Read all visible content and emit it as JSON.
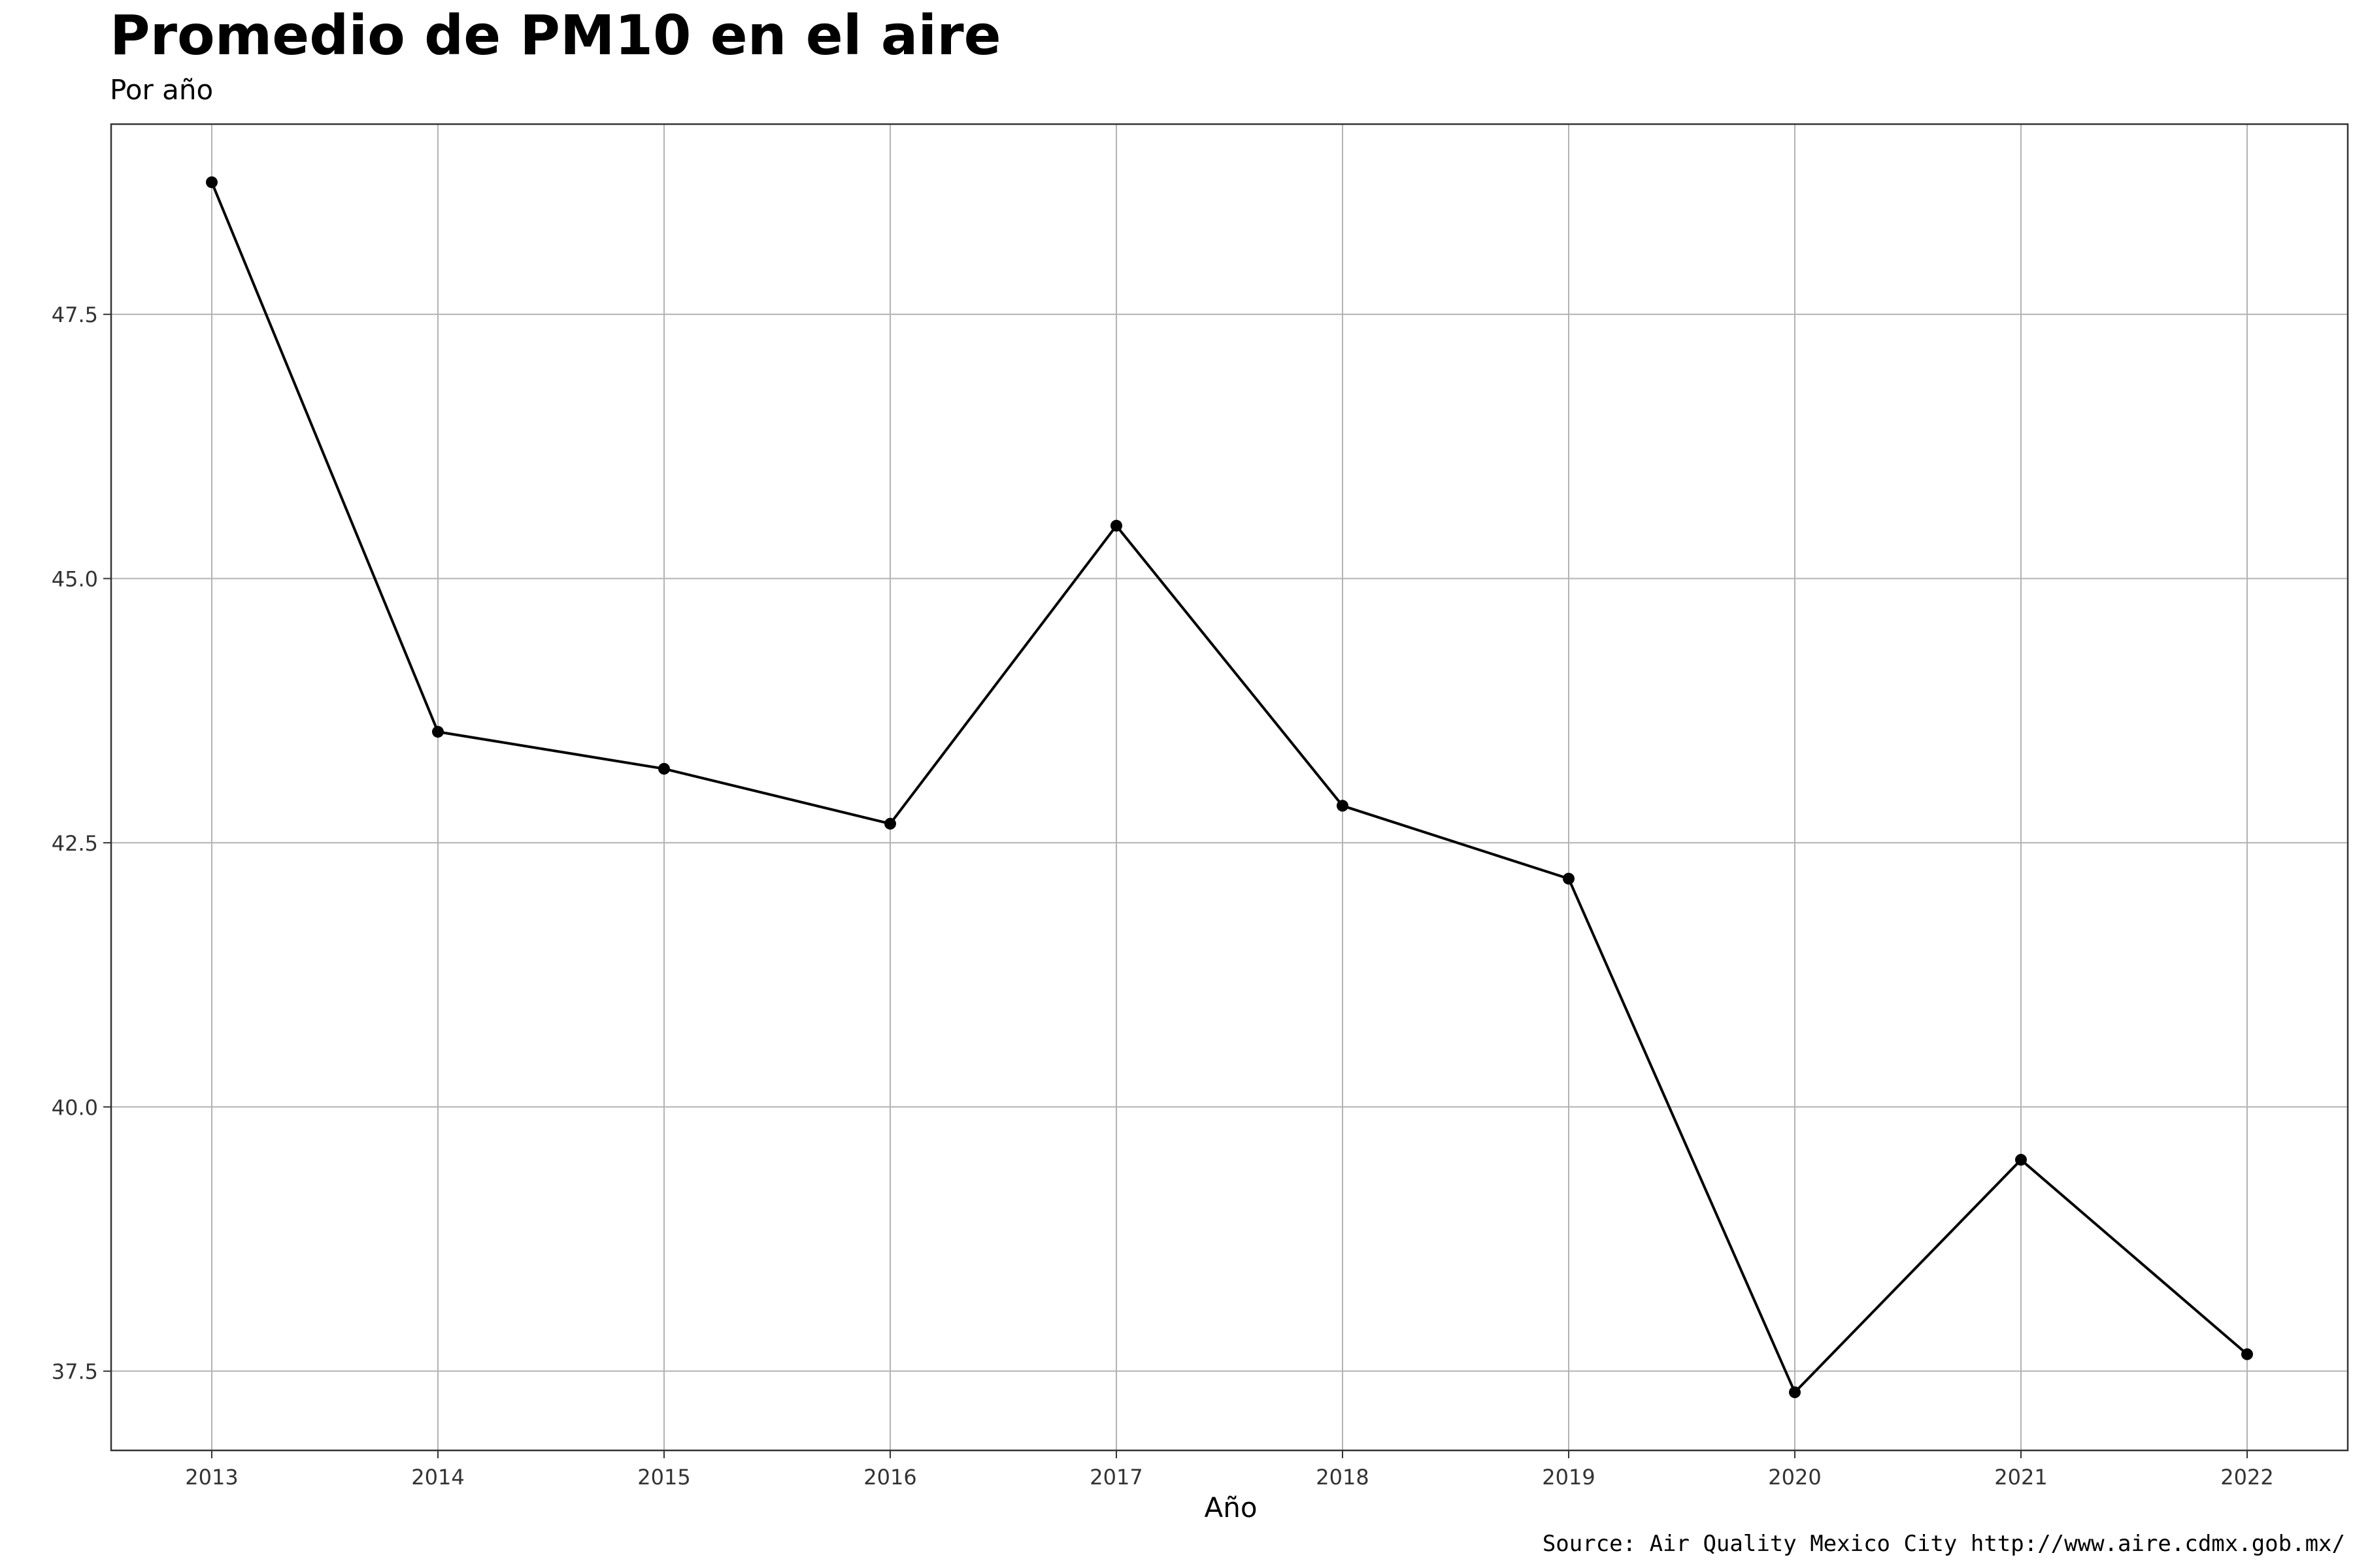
{
  "chart_data": {
    "type": "line",
    "title": "Promedio de PM10 en el aire",
    "subtitle": "Por año",
    "xlabel": "Año",
    "ylabel": "",
    "caption": "Source: Air Quality Mexico City http://www.aire.cdmx.gob.mx/",
    "x": [
      "2013",
      "2014",
      "2015",
      "2016",
      "2017",
      "2018",
      "2019",
      "2020",
      "2021",
      "2022"
    ],
    "series": [
      {
        "values": [
          48.75,
          43.55,
          43.2,
          42.68,
          45.5,
          42.85,
          42.16,
          37.3,
          39.5,
          37.66
        ]
      }
    ],
    "yticks": [
      "37.5",
      "40.0",
      "42.5",
      "45.0",
      "47.5"
    ],
    "ylim": [
      36.75,
      49.3
    ],
    "grid": true,
    "legend": "none",
    "colors": {
      "line": "#000000",
      "grid": "#b3b3b3",
      "frame": "#333333"
    }
  }
}
